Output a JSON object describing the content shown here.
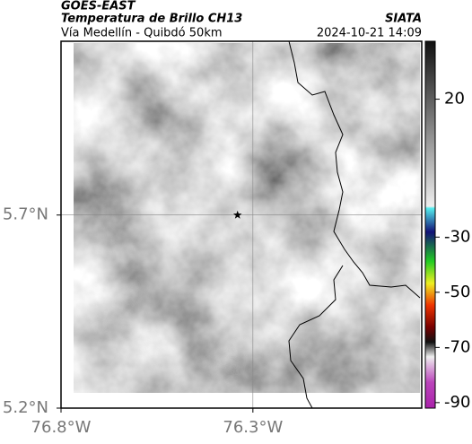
{
  "header": {
    "title": "GOES-EAST",
    "subtitle": "Temperatura de Brillo CH13",
    "route": "Vía Medellín - Quibdó 50km",
    "source": "SIATA",
    "timestamp": "2024-10-21 14:09"
  },
  "map": {
    "xlim": [
      -76.8,
      -75.86
    ],
    "ylim": [
      5.2,
      6.15
    ],
    "xticks": [
      {
        "value": -76.8,
        "label": "76.8°W"
      },
      {
        "value": -76.3,
        "label": "76.3°W"
      }
    ],
    "yticks": [
      {
        "value": 5.2,
        "label": "5.2°N"
      },
      {
        "value": 5.7,
        "label": "5.7°N"
      }
    ],
    "marker": {
      "lon": -76.34,
      "lat": 5.7
    }
  },
  "colorbar": {
    "lim": [
      41,
      -92
    ],
    "ticks": [
      20,
      -30,
      -50,
      -70,
      -90
    ]
  }
}
